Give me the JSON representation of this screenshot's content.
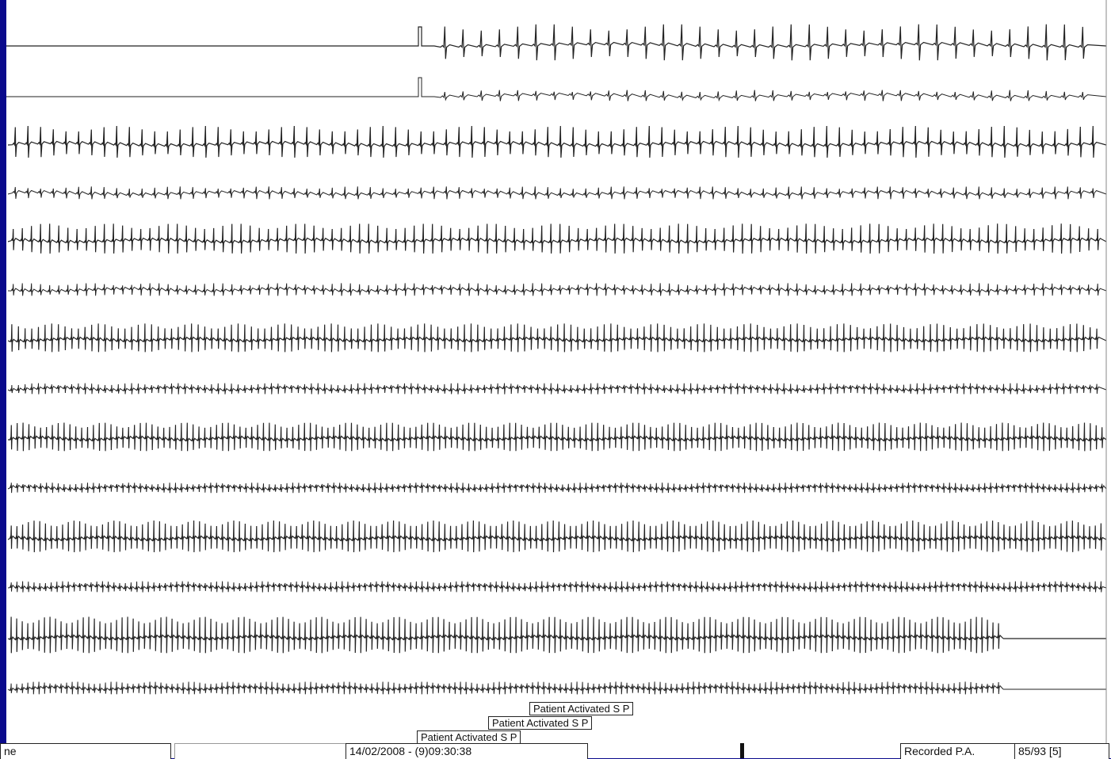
{
  "strip": {
    "annotations": [
      "Patient Activated  S P",
      "Patient Activated  S P",
      "Patient Activated  S P"
    ],
    "footer": {
      "left_fragment": "ne",
      "datetime": "14/02/2008 - (9)09:30:38",
      "recorded": "Recorded P.A.",
      "page": "85/93 [5]"
    }
  },
  "colors": {
    "background": "#0a0a8c",
    "paper": "#ffffff",
    "trace": "#222222"
  }
}
